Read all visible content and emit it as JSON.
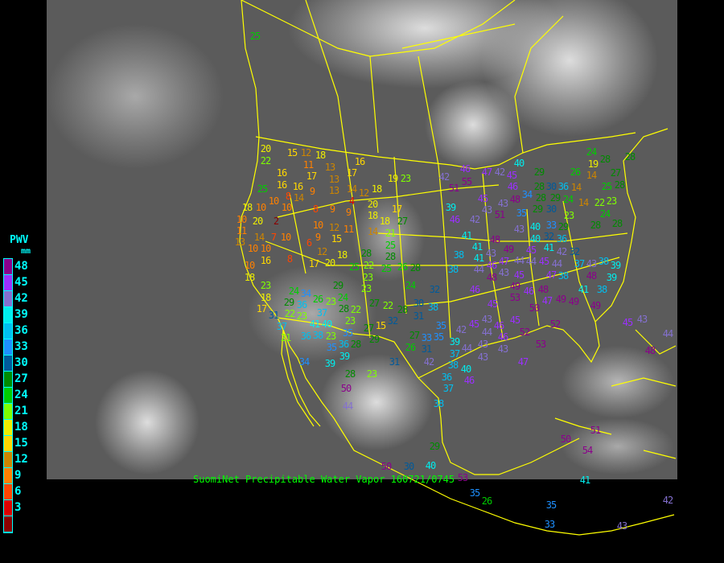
{
  "caption": "SuomiNet Precipitable Water Vapor 160721/0745",
  "legend": {
    "title": "PWV",
    "unit": "mm",
    "ticks": [
      "48",
      "45",
      "42",
      "39",
      "36",
      "33",
      "30",
      "27",
      "24",
      "21",
      "18",
      "15",
      "12",
      "9",
      "6",
      "3"
    ],
    "bins": [
      {
        "min": 48,
        "color": "#8b008b"
      },
      {
        "min": 45,
        "color": "#9b30ff"
      },
      {
        "min": 42,
        "color": "#8470d0"
      },
      {
        "min": 39,
        "color": "#00eeee"
      },
      {
        "min": 36,
        "color": "#00bfef"
      },
      {
        "min": 33,
        "color": "#1e90ff"
      },
      {
        "min": 30,
        "color": "#005a9a"
      },
      {
        "min": 27,
        "color": "#008b00"
      },
      {
        "min": 24,
        "color": "#00cd00"
      },
      {
        "min": 21,
        "color": "#7fff00"
      },
      {
        "min": 18,
        "color": "#eeee00"
      },
      {
        "min": 15,
        "color": "#ffd700"
      },
      {
        "min": 12,
        "color": "#cd8500"
      },
      {
        "min": 9,
        "color": "#ff8000"
      },
      {
        "min": 6,
        "color": "#ff4500"
      },
      {
        "min": 3,
        "color": "#dd0000"
      },
      {
        "min": 0,
        "color": "#8b0000"
      }
    ]
  },
  "boundary_color": "#ffff00",
  "stations": [
    25,
    20,
    22,
    15,
    12,
    18,
    11,
    17,
    13,
    13,
    17,
    16,
    16,
    16,
    16,
    9,
    13,
    14,
    12,
    18,
    19,
    23,
    25,
    8,
    14,
    10,
    10,
    4,
    20,
    18,
    10,
    20,
    2,
    8,
    9,
    9,
    18,
    17,
    10,
    11,
    18,
    27,
    21,
    13,
    14,
    7,
    10,
    10,
    12,
    11,
    14,
    10,
    10,
    6,
    9,
    15,
    25,
    16,
    8,
    12,
    18,
    28,
    28,
    10,
    18,
    17,
    20,
    25,
    22,
    25,
    26,
    28,
    23,
    23,
    18,
    17,
    24,
    34,
    29,
    23,
    24,
    36,
    26,
    23,
    24,
    37,
    28,
    22,
    23,
    27,
    22,
    30,
    32,
    31,
    22,
    23,
    29,
    41,
    40,
    35,
    28,
    32,
    31,
    38,
    37,
    21,
    38,
    23,
    36,
    35,
    27,
    15,
    29,
    28,
    36,
    27,
    33,
    35,
    26,
    31,
    34,
    39,
    39,
    28,
    23,
    31,
    50,
    44,
    40,
    46,
    47,
    42,
    45,
    42,
    55,
    51,
    46,
    29,
    28,
    30,
    36,
    26,
    14,
    19,
    24,
    28,
    28,
    34,
    28,
    29,
    29,
    30,
    24,
    14,
    14,
    22,
    23,
    27,
    28,
    25,
    45,
    43,
    43,
    48,
    39,
    51,
    35,
    23,
    24,
    28,
    28,
    46,
    42,
    43,
    40,
    33,
    29,
    41,
    41,
    48,
    40,
    32,
    36,
    49,
    45,
    44,
    41,
    42,
    32,
    38,
    41,
    43,
    47,
    46,
    44,
    45,
    44,
    47,
    38,
    44,
    43,
    48,
    45,
    49,
    38,
    37,
    43,
    38,
    39,
    39,
    48,
    38,
    41,
    46,
    53,
    46,
    48,
    47,
    49,
    45,
    50,
    49,
    43,
    45,
    42,
    46,
    45,
    44,
    46,
    49,
    35,
    39,
    37,
    44,
    43,
    43,
    52,
    53,
    52,
    45,
    43,
    48,
    44,
    42,
    38,
    36,
    40,
    46,
    43,
    47,
    37,
    38,
    29,
    50,
    30,
    40,
    53,
    35,
    26,
    35,
    33,
    50,
    51,
    54,
    41,
    43,
    42
  ]
}
